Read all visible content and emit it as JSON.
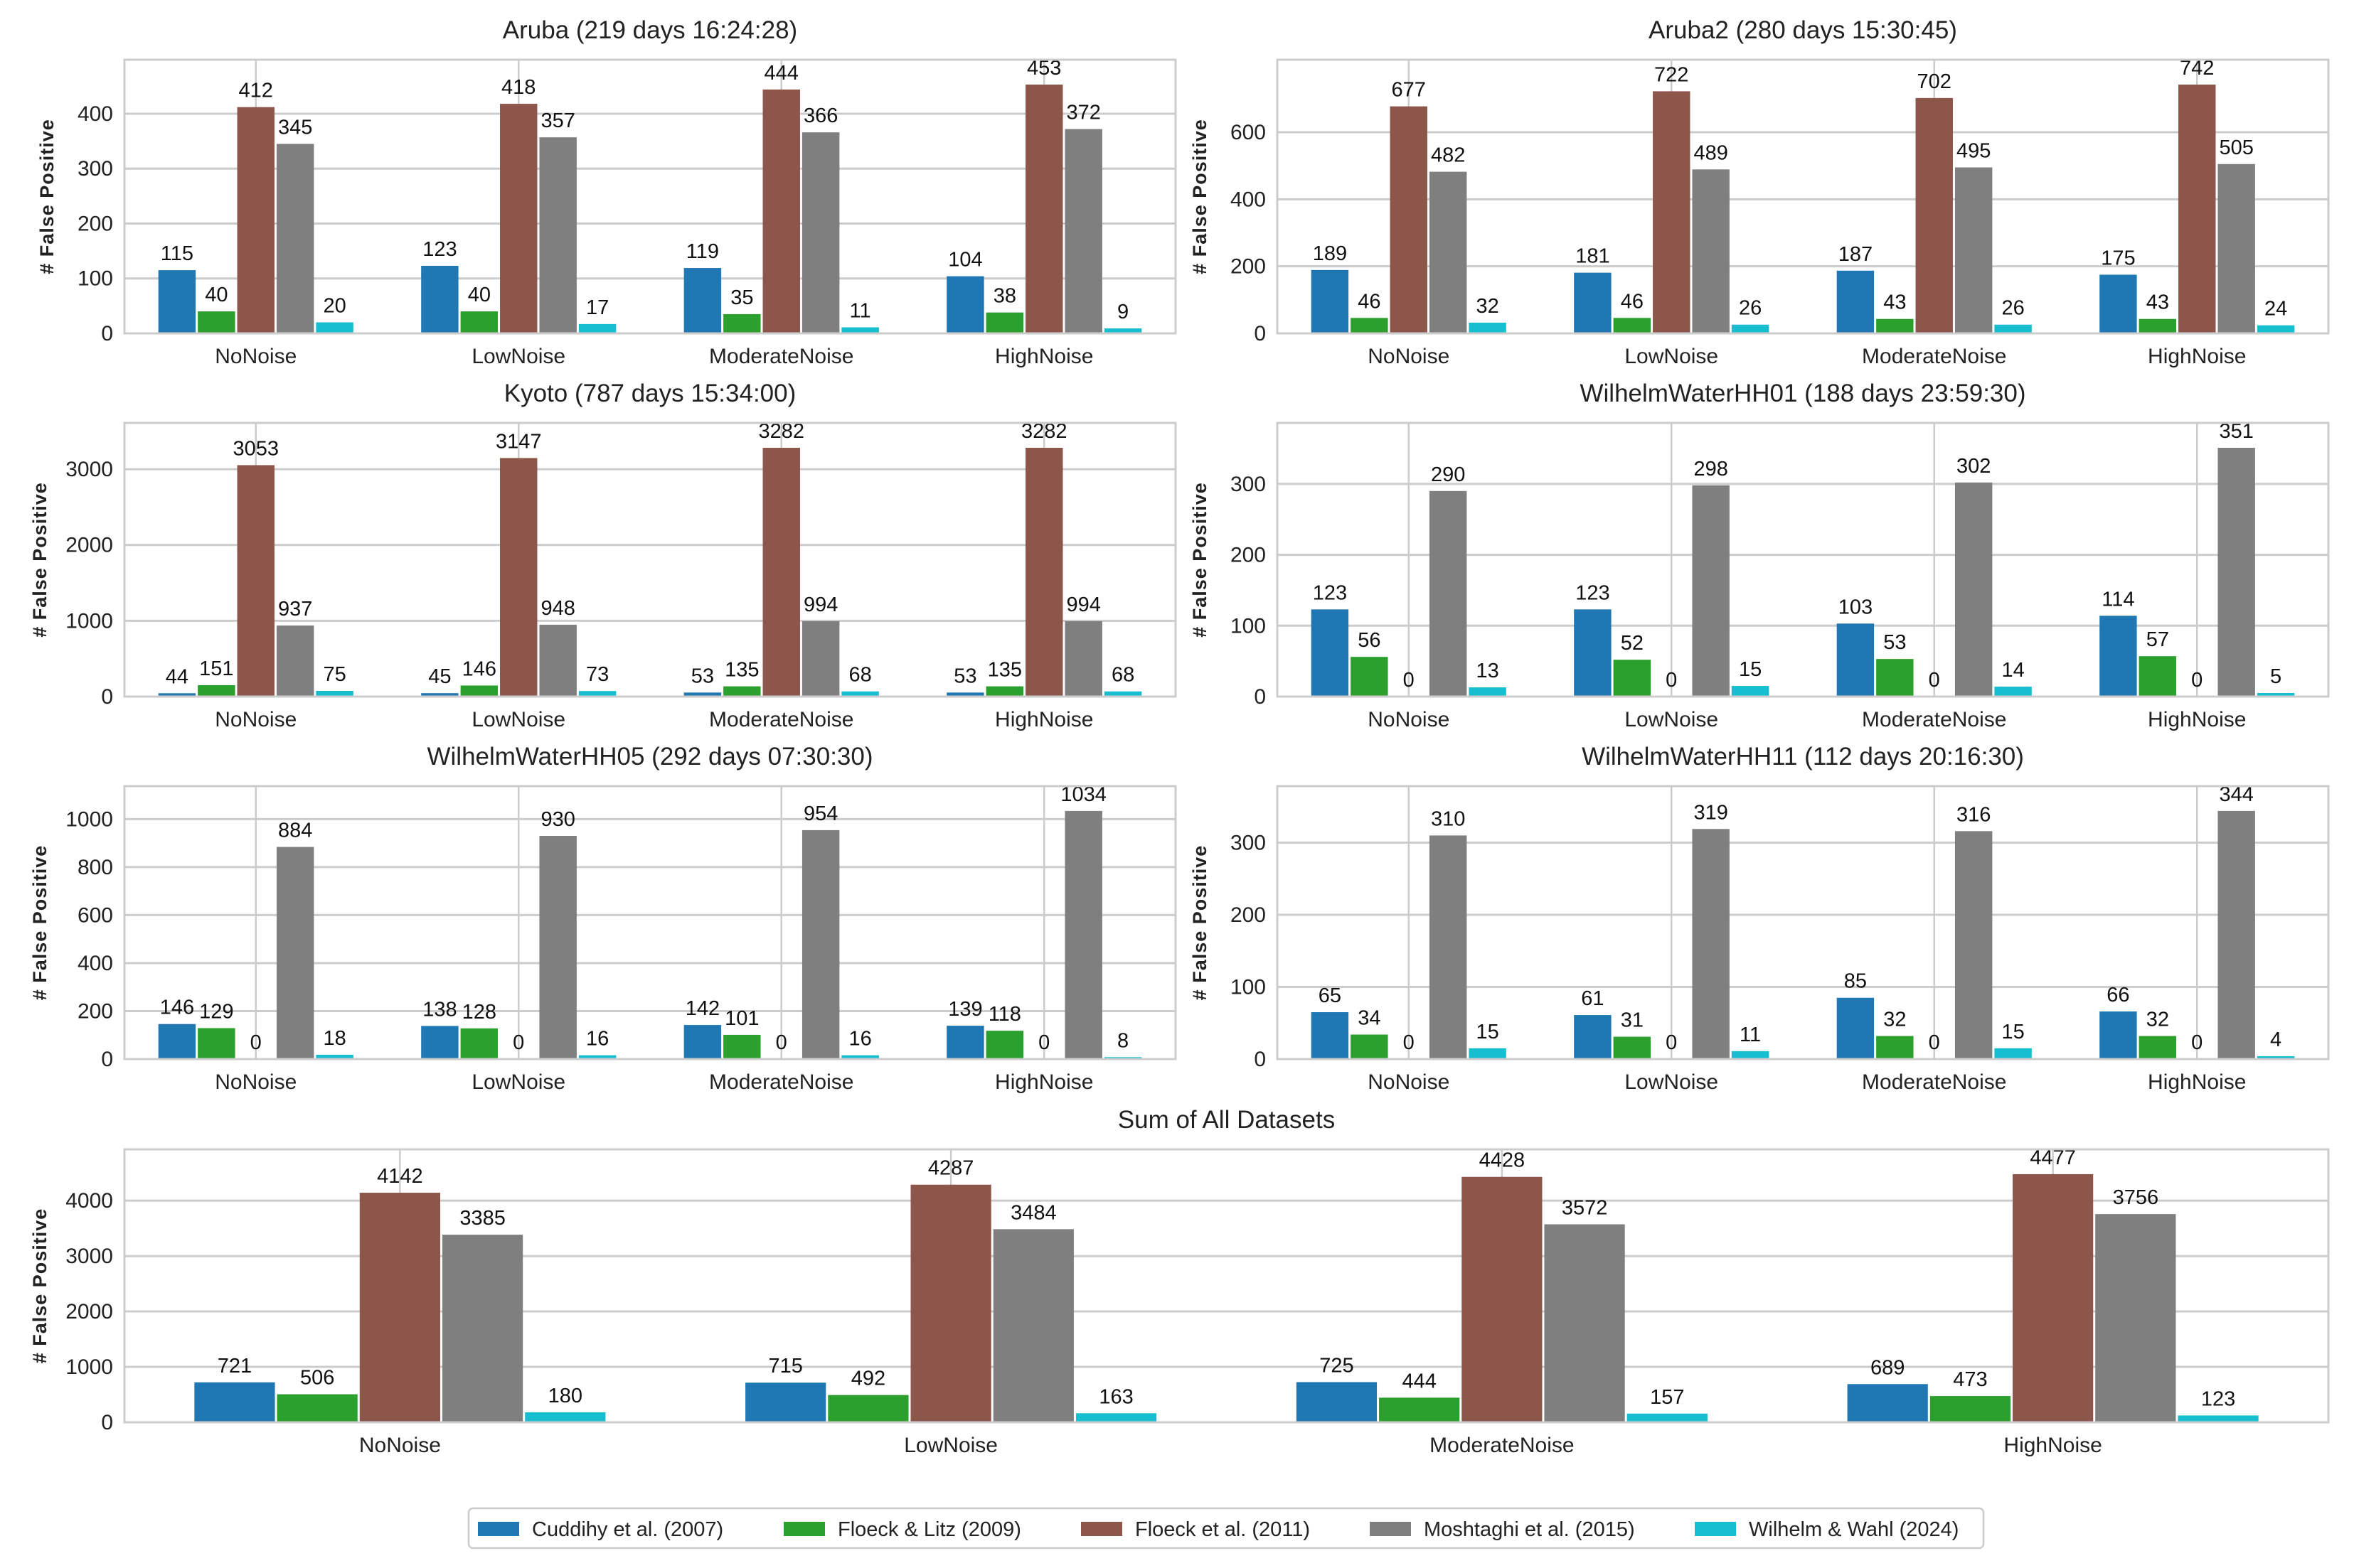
{
  "chart_data": {
    "type": "bar",
    "categories": [
      "NoNoise",
      "LowNoise",
      "ModerateNoise",
      "HighNoise"
    ],
    "ylabel": "# False Positive",
    "grid": true,
    "legend_position": "bottom-center",
    "series_names": [
      "Cuddihy et al. (2007)",
      "Floeck & Litz (2009)",
      "Floeck et al. (2011)",
      "Moshtaghi et al. (2015)",
      "Wilhelm & Wahl (2024)"
    ],
    "colors": [
      "#1f77b4",
      "#2ca02c",
      "#8c564b",
      "#7f7f7f",
      "#17becf"
    ],
    "panels": [
      {
        "title": "Aruba (219 days 16:24:28)",
        "yticks": [
          0,
          100,
          200,
          300,
          400
        ],
        "values": [
          [
            115,
            123,
            119,
            104
          ],
          [
            40,
            40,
            35,
            38
          ],
          [
            412,
            418,
            444,
            453
          ],
          [
            345,
            357,
            366,
            372
          ],
          [
            20,
            17,
            11,
            9
          ]
        ]
      },
      {
        "title": "Aruba2 (280 days 15:30:45)",
        "yticks": [
          0,
          200,
          400,
          600
        ],
        "values": [
          [
            189,
            181,
            187,
            175
          ],
          [
            46,
            46,
            43,
            43
          ],
          [
            677,
            722,
            702,
            742
          ],
          [
            482,
            489,
            495,
            505
          ],
          [
            32,
            26,
            26,
            24
          ]
        ]
      },
      {
        "title": "Kyoto (787 days 15:34:00)",
        "yticks": [
          0,
          1000,
          2000,
          3000
        ],
        "values": [
          [
            44,
            45,
            53,
            53
          ],
          [
            151,
            146,
            135,
            135
          ],
          [
            3053,
            3147,
            3282,
            3282
          ],
          [
            937,
            948,
            994,
            994
          ],
          [
            75,
            73,
            68,
            68
          ]
        ]
      },
      {
        "title": "WilhelmWaterHH01 (188 days 23:59:30)",
        "yticks": [
          0,
          100,
          200,
          300
        ],
        "values": [
          [
            123,
            123,
            103,
            114
          ],
          [
            56,
            52,
            53,
            57
          ],
          [
            0,
            0,
            0,
            0
          ],
          [
            290,
            298,
            302,
            351
          ],
          [
            13,
            15,
            14,
            5
          ]
        ]
      },
      {
        "title": "WilhelmWaterHH05 (292 days 07:30:30)",
        "yticks": [
          0,
          200,
          400,
          600,
          800,
          1000
        ],
        "values": [
          [
            146,
            138,
            142,
            139
          ],
          [
            129,
            128,
            101,
            118
          ],
          [
            0,
            0,
            0,
            0
          ],
          [
            884,
            930,
            954,
            1034
          ],
          [
            18,
            16,
            16,
            8
          ]
        ]
      },
      {
        "title": "WilhelmWaterHH11 (112 days 20:16:30)",
        "yticks": [
          0,
          100,
          200,
          300
        ],
        "values": [
          [
            65,
            61,
            85,
            66
          ],
          [
            34,
            31,
            32,
            32
          ],
          [
            0,
            0,
            0,
            0
          ],
          [
            310,
            319,
            316,
            344
          ],
          [
            15,
            11,
            15,
            4
          ]
        ]
      },
      {
        "title": "Sum of All Datasets",
        "yticks": [
          0,
          1000,
          2000,
          3000,
          4000
        ],
        "values": [
          [
            721,
            715,
            725,
            689
          ],
          [
            506,
            492,
            444,
            473
          ],
          [
            4142,
            4287,
            4428,
            4477
          ],
          [
            3385,
            3484,
            3572,
            3756
          ],
          [
            180,
            163,
            157,
            123
          ]
        ]
      }
    ]
  }
}
